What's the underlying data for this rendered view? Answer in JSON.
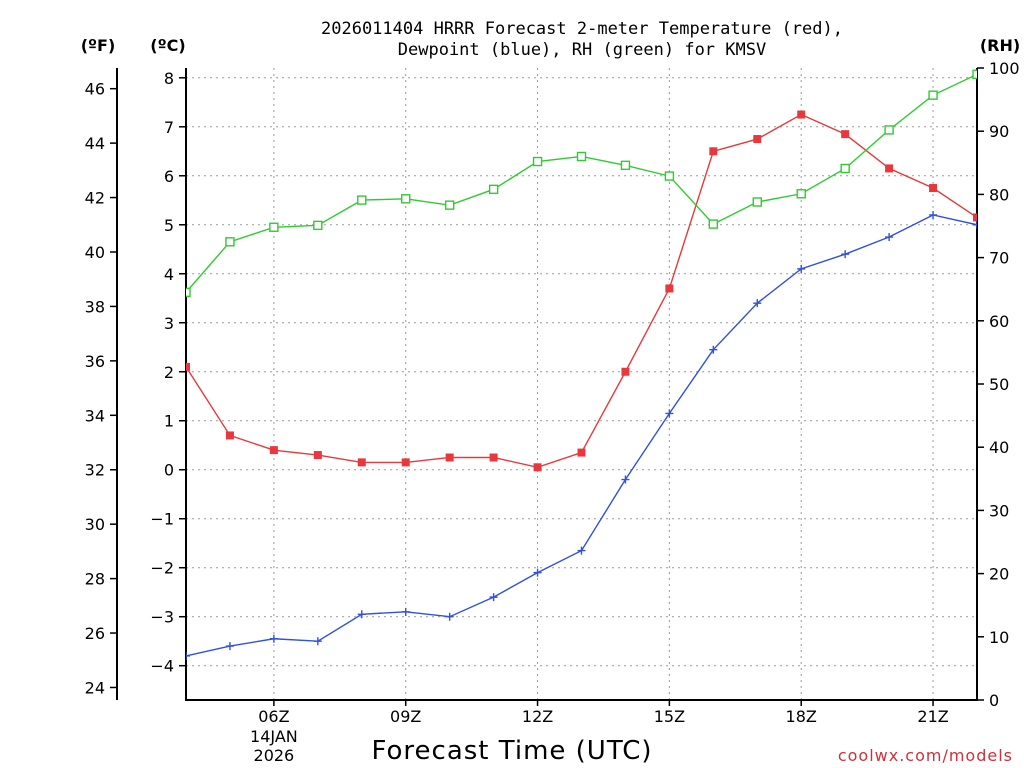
{
  "page": {
    "title_line1": "2026011404 HRRR Forecast 2-meter Temperature (red),",
    "title_line2": "Dewpoint (blue), RH (green) for KMSV",
    "credit": "coolwx.com/models"
  },
  "chart_data": {
    "type": "line",
    "title": "2026011404 HRRR Forecast 2-meter Temperature (red), Dewpoint (blue), RH (green) for KMSV",
    "xlabel": "Forecast Time (UTC)",
    "units": {
      "fahrenheit": "(ºF)",
      "celsius": "(ºC)",
      "rh": "(RH)"
    },
    "x": [
      4,
      5,
      6,
      7,
      8,
      9,
      10,
      11,
      12,
      13,
      14,
      15,
      16,
      17,
      18,
      19,
      20,
      21,
      22
    ],
    "xlim": [
      4,
      22
    ],
    "x_ticks": [
      {
        "hour": 6,
        "label": "06Z",
        "sub1": "14JAN",
        "sub2": "2026"
      },
      {
        "hour": 9,
        "label": "09Z",
        "sub1": "",
        "sub2": ""
      },
      {
        "hour": 12,
        "label": "12Z",
        "sub1": "",
        "sub2": ""
      },
      {
        "hour": 15,
        "label": "15Z",
        "sub1": "",
        "sub2": ""
      },
      {
        "hour": 18,
        "label": "18Z",
        "sub1": "",
        "sub2": ""
      },
      {
        "hour": 21,
        "label": "21Z",
        "sub1": "",
        "sub2": ""
      }
    ],
    "ylim_c": [
      -4.7,
      8.2
    ],
    "c_ticks": [
      "-4",
      "-3",
      "-2",
      "-1",
      "0",
      "1",
      "2",
      "3",
      "4",
      "5",
      "6",
      "7",
      "8"
    ],
    "f_ticks": [
      "24",
      "26",
      "28",
      "30",
      "32",
      "34",
      "36",
      "38",
      "40",
      "42",
      "44",
      "46"
    ],
    "ylim_rh": [
      0,
      100
    ],
    "rh_ticks": [
      "0",
      "10",
      "20",
      "30",
      "40",
      "50",
      "60",
      "70",
      "80",
      "90",
      "100"
    ],
    "series": [
      {
        "name": "Temperature",
        "axis": "c",
        "color": "#e8383d",
        "marker": "square-filled",
        "values": [
          2.1,
          0.7,
          0.4,
          0.3,
          0.15,
          0.15,
          0.25,
          0.25,
          0.05,
          0.35,
          2.0,
          3.7,
          6.5,
          6.75,
          7.25,
          6.85,
          6.15,
          5.75,
          5.15
        ]
      },
      {
        "name": "Dewpoint",
        "axis": "c",
        "color": "#3050e0",
        "marker": "plus",
        "values": [
          -3.8,
          -3.6,
          -3.45,
          -3.5,
          -2.95,
          -2.9,
          -3.0,
          -2.6,
          -2.1,
          -1.65,
          -0.2,
          1.15,
          2.45,
          3.4,
          4.1,
          4.4,
          4.75,
          5.2,
          5.0
        ]
      },
      {
        "name": "RH",
        "axis": "rh",
        "color": "#2ecc2e",
        "marker": "square-open",
        "values": [
          64.5,
          72.5,
          74.8,
          75.1,
          79.1,
          79.3,
          78.3,
          80.8,
          85.2,
          86.0,
          84.6,
          82.9,
          75.3,
          78.8,
          80.1,
          84.1,
          90.2,
          95.7,
          99.0
        ]
      }
    ]
  }
}
